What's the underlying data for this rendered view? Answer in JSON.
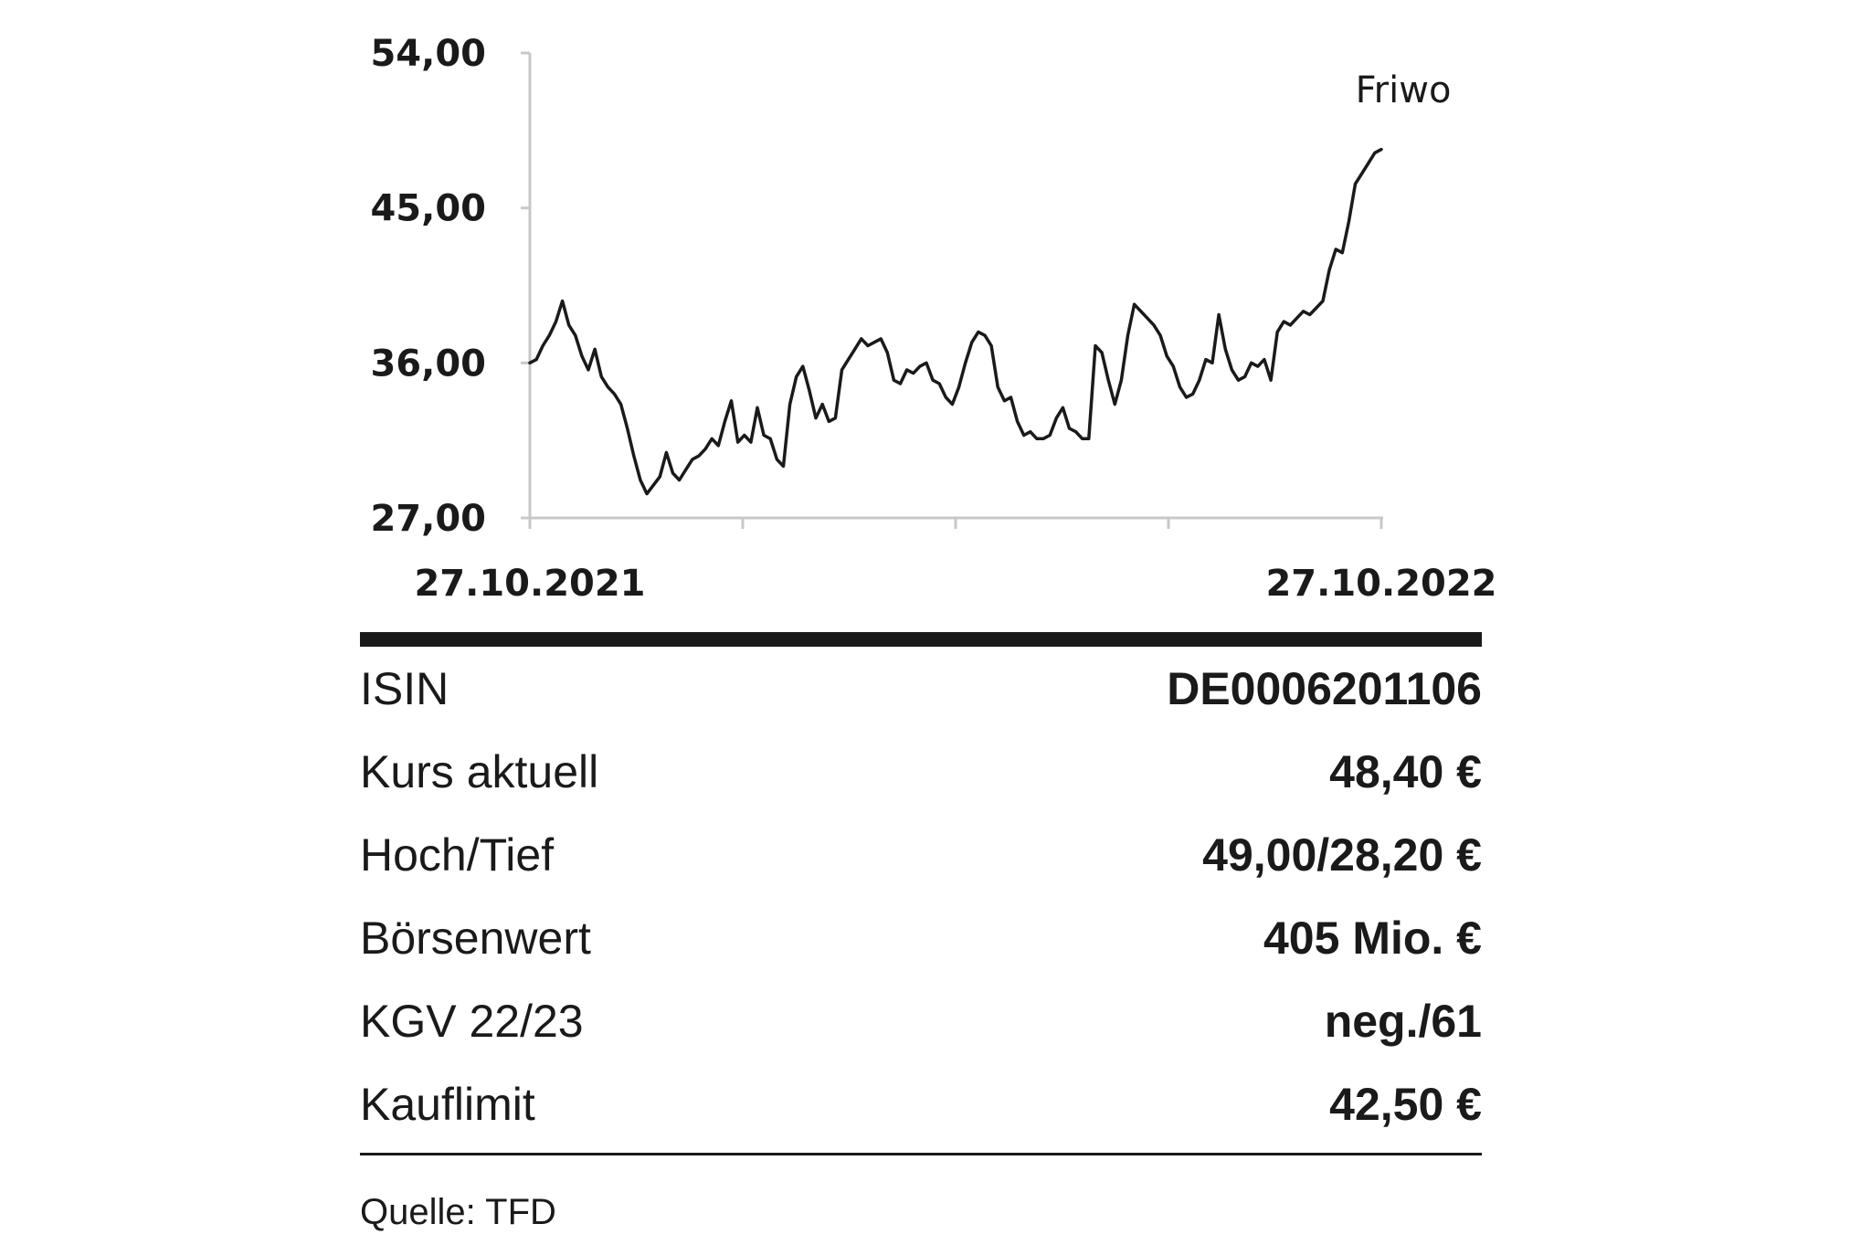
{
  "chart_data": {
    "type": "line",
    "title": "",
    "series": [
      {
        "name": "Friwo",
        "x_start": "27.10.2021",
        "x_end": "27.10.2022",
        "values": [
          36.0,
          36.2,
          37.0,
          37.6,
          38.4,
          39.6,
          38.2,
          37.6,
          36.4,
          35.6,
          36.8,
          35.2,
          34.6,
          34.2,
          33.6,
          32.2,
          30.6,
          29.2,
          28.4,
          28.9,
          29.4,
          30.8,
          29.6,
          29.2,
          29.8,
          30.4,
          30.6,
          31.0,
          31.6,
          31.2,
          32.6,
          33.8,
          31.4,
          31.8,
          31.4,
          33.4,
          31.8,
          31.6,
          30.4,
          30.0,
          33.6,
          35.2,
          35.8,
          34.4,
          32.8,
          33.6,
          32.6,
          32.8,
          35.6,
          36.2,
          36.8,
          37.4,
          37.0,
          37.2,
          37.4,
          36.6,
          35.0,
          34.8,
          35.6,
          35.4,
          35.8,
          36.0,
          35.0,
          34.8,
          34.0,
          33.6,
          34.6,
          36.0,
          37.2,
          37.8,
          37.6,
          37.0,
          34.6,
          33.8,
          34.0,
          32.6,
          31.8,
          32.0,
          31.6,
          31.6,
          31.8,
          32.8,
          33.4,
          32.2,
          32.0,
          31.6,
          31.6,
          37.0,
          36.6,
          35.0,
          33.6,
          35.0,
          37.6,
          39.4,
          39.0,
          38.6,
          38.2,
          37.6,
          36.4,
          35.8,
          34.6,
          34.0,
          34.2,
          35.0,
          36.2,
          36.0,
          38.8,
          36.8,
          35.6,
          35.0,
          35.2,
          36.0,
          35.8,
          36.2,
          35.0,
          37.8,
          38.4,
          38.2,
          38.6,
          39.0,
          38.8,
          39.2,
          39.6,
          41.4,
          42.6,
          42.4,
          44.2,
          46.4,
          47.0,
          47.6,
          48.2,
          48.4
        ]
      }
    ],
    "x_tick_labels": [
      "27.10.2021",
      "27.10.2022"
    ],
    "y_ticks": [
      "54,00",
      "45,00",
      "36,00",
      "27,00"
    ],
    "ylim": [
      27,
      54
    ],
    "grid": false,
    "legend": "series name printed at top-right of plot"
  },
  "facts": {
    "rows": [
      {
        "label": "ISIN",
        "value": "DE0006201106"
      },
      {
        "label": "Kurs aktuell",
        "value": "48,40 €"
      },
      {
        "label": "Hoch/Tief",
        "value": "49,00/28,20 €"
      },
      {
        "label": "Börsenwert",
        "value": "405 Mio. €"
      },
      {
        "label": "KGV 22/23",
        "value": "neg./61"
      },
      {
        "label": "Kauflimit",
        "value": "42,50 €"
      }
    ]
  },
  "source": "Quelle: TFD",
  "colors": {
    "ink": "#1a1a1a",
    "axis": "#c8c8c8",
    "background": "#ffffff"
  }
}
